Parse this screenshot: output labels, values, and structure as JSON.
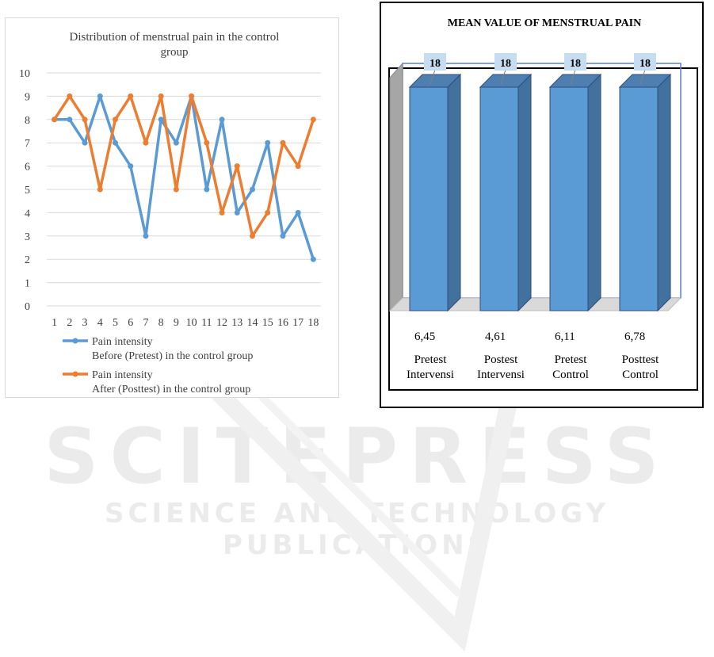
{
  "watermark": {
    "main": "SCITEPRESS",
    "sub": "SCIENCE AND TECHNOLOGY PUBLICATIONS"
  },
  "chart_data": [
    {
      "type": "line",
      "title": "Distribution of menstrual pain in the  control group",
      "x": [
        1,
        2,
        3,
        4,
        5,
        6,
        7,
        8,
        9,
        10,
        11,
        12,
        13,
        14,
        15,
        16,
        17,
        18
      ],
      "ylim": [
        0,
        10
      ],
      "yticks": [
        0,
        1,
        2,
        3,
        4,
        5,
        6,
        7,
        8,
        9,
        10
      ],
      "grid": true,
      "legend_position": "bottom",
      "series": [
        {
          "name": "Pain intensity Before (Pretest) in the control group",
          "legend_lines": [
            "Pain intensity",
            "Before (Pretest) in the control group"
          ],
          "color": "#5b9bd5",
          "values": [
            8,
            8,
            7,
            9,
            7,
            6,
            3,
            8,
            7,
            9,
            5,
            8,
            4,
            5,
            7,
            3,
            4,
            2
          ]
        },
        {
          "name": "Pain intensity After (Posttest) in the control group",
          "legend_lines": [
            "Pain intensity",
            "After (Posttest) in the control group"
          ],
          "color": "#ed7d31",
          "values": [
            8,
            9,
            8,
            5,
            8,
            9,
            7,
            9,
            5,
            9,
            7,
            4,
            6,
            3,
            4,
            7,
            6,
            8
          ]
        }
      ]
    },
    {
      "type": "bar",
      "title": "MEAN VALUE OF MENSTRUAL PAIN",
      "categories": [
        [
          "Pretest",
          "Intervensi"
        ],
        [
          "Postest",
          "Intervensi"
        ],
        [
          "Pretest",
          "Control"
        ],
        [
          "Posttest",
          "Control"
        ]
      ],
      "values": [
        18,
        18,
        18,
        18
      ],
      "data_labels": [
        "18",
        "18",
        "18",
        "18"
      ],
      "means": [
        "6,45",
        "4,61",
        "6,11",
        "6,78"
      ],
      "bar_color": "#5b9bd5"
    }
  ]
}
